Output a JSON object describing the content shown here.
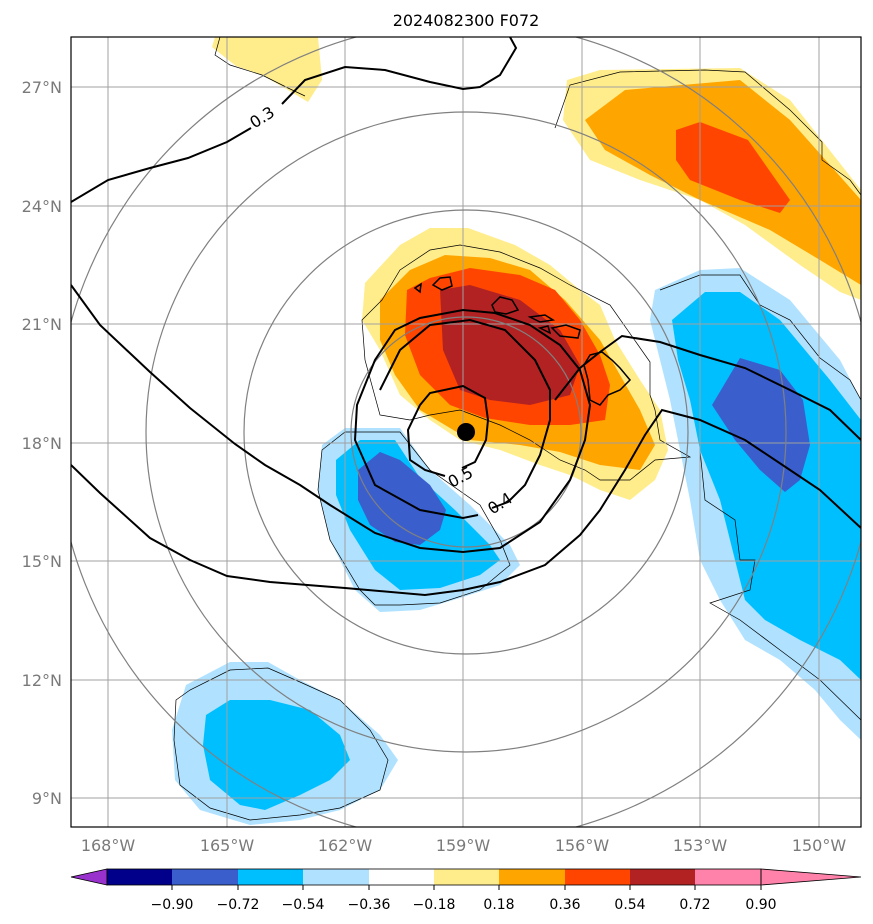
{
  "title": "2024082300 F072",
  "lat_labels": [
    "27°N",
    "24°N",
    "21°N",
    "18°N",
    "15°N",
    "12°N",
    "9°N"
  ],
  "lon_labels": [
    "168°W",
    "165°W",
    "162°W",
    "159°W",
    "156°W",
    "153°W",
    "150°W"
  ],
  "contour_labels": [
    "0.3",
    "0.4",
    "0.5"
  ],
  "colorbar": {
    "tick_labels": [
      "−0.90",
      "−0.72",
      "−0.54",
      "−0.36",
      "−0.18",
      "0.18",
      "0.36",
      "0.54",
      "0.72",
      "0.90"
    ],
    "colors": [
      "#9932cc",
      "#00008b",
      "#3a5fcd",
      "#00bfff",
      "#b0e2ff",
      "#ffffff",
      "#ffec8b",
      "#ffa500",
      "#ff4500",
      "#b22222",
      "#ff82ab"
    ]
  },
  "storm_center": {
    "lon": -159,
    "lat": 18.3
  },
  "colors": {
    "light_yellow": "#ffec8b",
    "orange": "#ffa500",
    "red_orange": "#ff4500",
    "dark_red": "#b22222",
    "light_blue": "#b0e2ff",
    "deep_sky_blue": "#00bfff",
    "royal_blue": "#3a5fcd",
    "grid": "#a0a0a0",
    "range_rings": "#808080"
  }
}
